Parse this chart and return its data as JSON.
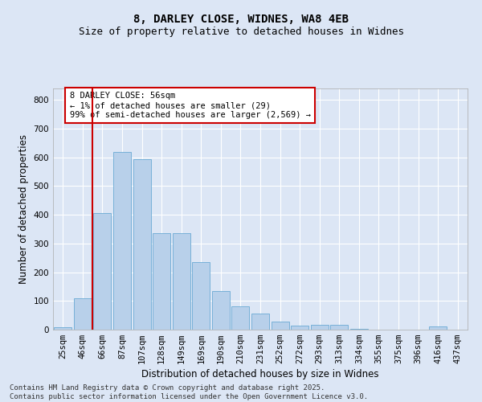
{
  "title1": "8, DARLEY CLOSE, WIDNES, WA8 4EB",
  "title2": "Size of property relative to detached houses in Widnes",
  "xlabel": "Distribution of detached houses by size in Widnes",
  "ylabel": "Number of detached properties",
  "categories": [
    "25sqm",
    "46sqm",
    "66sqm",
    "87sqm",
    "107sqm",
    "128sqm",
    "149sqm",
    "169sqm",
    "190sqm",
    "210sqm",
    "231sqm",
    "252sqm",
    "272sqm",
    "293sqm",
    "313sqm",
    "334sqm",
    "355sqm",
    "375sqm",
    "396sqm",
    "416sqm",
    "437sqm"
  ],
  "values": [
    8,
    110,
    405,
    620,
    595,
    335,
    335,
    235,
    135,
    80,
    55,
    27,
    13,
    16,
    17,
    3,
    0,
    0,
    0,
    10,
    0
  ],
  "bar_color": "#b8d0ea",
  "bar_edge_color": "#6aaad4",
  "vline_color": "#cc0000",
  "vline_x": 1.5,
  "annotation_text": "8 DARLEY CLOSE: 56sqm\n← 1% of detached houses are smaller (29)\n99% of semi-detached houses are larger (2,569) →",
  "annotation_box_color": "#ffffff",
  "annotation_box_edge_color": "#cc0000",
  "ylim": [
    0,
    840
  ],
  "yticks": [
    0,
    100,
    200,
    300,
    400,
    500,
    600,
    700,
    800
  ],
  "bg_color": "#dce6f5",
  "plot_bg_color": "#dce6f5",
  "grid_color": "#ffffff",
  "footer": "Contains HM Land Registry data © Crown copyright and database right 2025.\nContains public sector information licensed under the Open Government Licence v3.0.",
  "title1_fontsize": 10,
  "title2_fontsize": 9,
  "xlabel_fontsize": 8.5,
  "ylabel_fontsize": 8.5,
  "tick_fontsize": 7.5,
  "annotation_fontsize": 7.5,
  "footer_fontsize": 6.5
}
